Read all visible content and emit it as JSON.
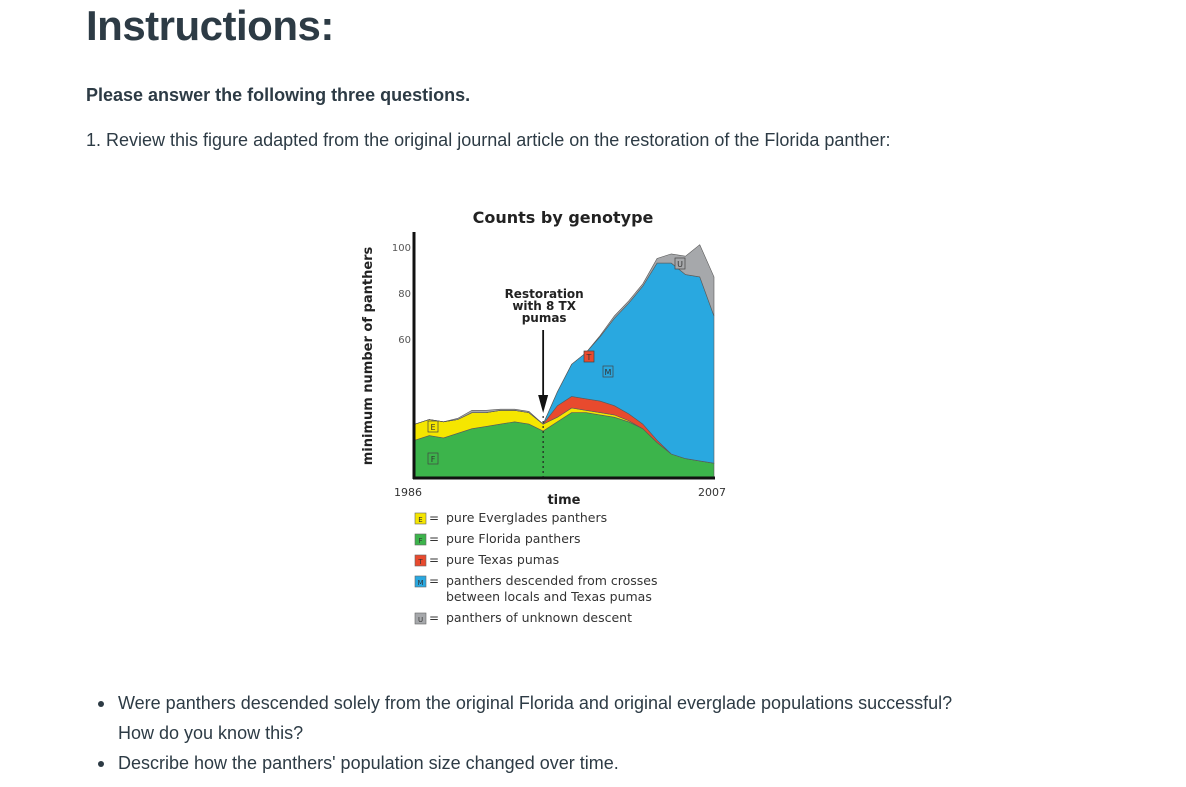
{
  "page": {
    "title": "Instructions:",
    "lead": "Please answer the following three questions.",
    "question_1": "1. Review this figure adapted from the original journal article on the restoration of the Florida panther:",
    "bullets": [
      "Were panthers descended solely from the original Florida and original everglade populations successful? How do you know this?",
      "Describe how the panthers' population size changed over time."
    ]
  },
  "chart_data": {
    "type": "area",
    "stacked": true,
    "title": "Counts by genotype",
    "xlabel": "time",
    "ylabel": "minimum number of panthers",
    "x_tick_labels": [
      "1986",
      "2007"
    ],
    "y_ticks": [
      60,
      80,
      100
    ],
    "ylim": [
      0,
      105
    ],
    "x": [
      1986,
      1987,
      1988,
      1989,
      1990,
      1991,
      1992,
      1993,
      1994,
      1995,
      1996,
      1997,
      1998,
      1999,
      2000,
      2001,
      2002,
      2003,
      2004,
      2005,
      2006,
      2007
    ],
    "annotation": {
      "text": [
        "Restoration",
        "with 8 TX",
        "pumas"
      ],
      "x": 1995,
      "marker": "arrow-down with dashed vertical line"
    },
    "series": [
      {
        "name": "F",
        "label": "pure Florida panthers",
        "color": "#3cb44b",
        "values": [
          16,
          18,
          17,
          19,
          21,
          22,
          23,
          24,
          23,
          20,
          24,
          28,
          28,
          27,
          26,
          24,
          21,
          15,
          10,
          8,
          7,
          6
        ]
      },
      {
        "name": "E",
        "label": "pure Everglades panthers",
        "color": "#f5e600",
        "values": [
          7,
          7,
          7,
          6,
          7,
          6,
          6,
          5,
          5,
          3,
          2,
          2,
          1,
          1,
          1,
          0.5,
          0,
          0,
          0,
          0,
          0,
          0
        ]
      },
      {
        "name": "T",
        "label": "pure Texas pumas",
        "color": "#e84a2e",
        "values": [
          0,
          0,
          0,
          0,
          0,
          0,
          0,
          0,
          0,
          0,
          5,
          5,
          5,
          5,
          4,
          3,
          2,
          1,
          0,
          0,
          0,
          0
        ]
      },
      {
        "name": "M",
        "label": "panthers descended from crosses between locals and Texas pumas",
        "color": "#29a8e0",
        "values": [
          0,
          0,
          0,
          0,
          0,
          0,
          0,
          0,
          0,
          0,
          6,
          14,
          20,
          28,
          38,
          48,
          60,
          77,
          83,
          80,
          80,
          64
        ]
      },
      {
        "name": "U",
        "label": "panthers of unknown descent",
        "color": "#a6a8ab",
        "values": [
          0,
          0,
          0,
          0.5,
          1,
          1,
          0.5,
          0.5,
          0.5,
          0,
          0,
          0,
          0,
          0.5,
          1,
          1,
          1,
          2,
          4,
          8,
          14,
          17
        ]
      }
    ],
    "grid": false,
    "legend_position": "bottom"
  },
  "legend": [
    {
      "key": "E",
      "text": "pure Everglades panthers",
      "color": "#f5e600"
    },
    {
      "key": "F",
      "text": "pure Florida panthers",
      "color": "#3cb44b"
    },
    {
      "key": "T",
      "text": "pure Texas pumas",
      "color": "#e84a2e"
    },
    {
      "key": "M",
      "text": [
        "panthers descended from crosses",
        "between locals and Texas pumas"
      ],
      "color": "#29a8e0"
    },
    {
      "key": "U",
      "text": "panthers of unknown descent",
      "color": "#a6a8ab"
    }
  ]
}
